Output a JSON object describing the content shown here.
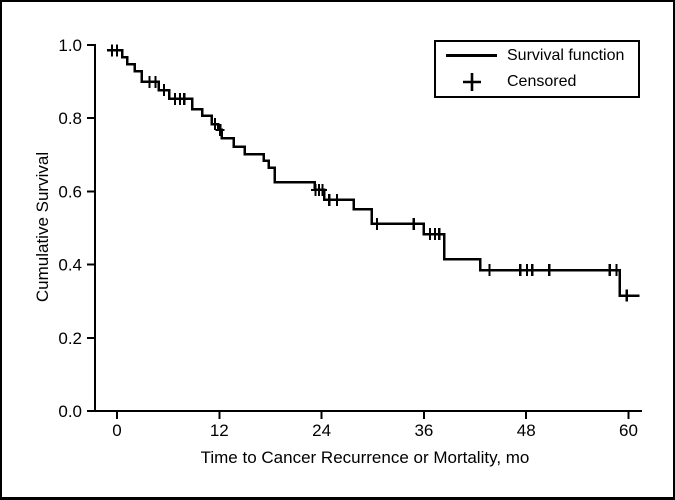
{
  "figure": {
    "background": "#ffffff",
    "frame_color": "#000000"
  },
  "chart_data": {
    "type": "line",
    "subtype": "kaplan-meier-step-function",
    "title": "",
    "xlabel": "Time to Cancer Recurrence or Mortality, mo",
    "ylabel": "Cumulative Survival",
    "x_ticks": [
      0,
      12,
      24,
      36,
      48,
      60
    ],
    "y_tick_labels": [
      "0.0",
      "0.2",
      "0.4",
      "0.6",
      "0.8",
      "1.0"
    ],
    "xlim": [
      -2.6,
      61.6
    ],
    "ylim": [
      0.0,
      1.0
    ],
    "grid": false,
    "line_color": "#000000",
    "legend": {
      "position": "top-right",
      "entries": [
        {
          "label": "Survival function",
          "marker": "line"
        },
        {
          "label": "Censored",
          "marker": "plus"
        }
      ]
    },
    "survival_start": {
      "t": -1.2,
      "s": 0.985
    },
    "survival_steps": [
      {
        "t": 0.6,
        "s": 0.966
      },
      {
        "t": 1.2,
        "s": 0.947
      },
      {
        "t": 2.1,
        "s": 0.928
      },
      {
        "t": 2.9,
        "s": 0.899
      },
      {
        "t": 4.9,
        "s": 0.877
      },
      {
        "t": 6.1,
        "s": 0.853
      },
      {
        "t": 8.8,
        "s": 0.825
      },
      {
        "t": 10.0,
        "s": 0.807
      },
      {
        "t": 11.1,
        "s": 0.784
      },
      {
        "t": 11.9,
        "s": 0.768
      },
      {
        "t": 12.3,
        "s": 0.745
      },
      {
        "t": 13.7,
        "s": 0.722
      },
      {
        "t": 15.0,
        "s": 0.702
      },
      {
        "t": 17.2,
        "s": 0.684
      },
      {
        "t": 17.8,
        "s": 0.665
      },
      {
        "t": 18.5,
        "s": 0.625
      },
      {
        "t": 23.2,
        "s": 0.604
      },
      {
        "t": 24.3,
        "s": 0.577
      },
      {
        "t": 27.8,
        "s": 0.551
      },
      {
        "t": 29.9,
        "s": 0.511
      },
      {
        "t": 36.0,
        "s": 0.483
      },
      {
        "t": 38.4,
        "s": 0.414
      },
      {
        "t": 42.6,
        "s": 0.385
      },
      {
        "t": 59.0,
        "s": 0.315
      }
    ],
    "end_time": 61.3,
    "censored": [
      {
        "t": -0.6,
        "s": 0.985
      },
      {
        "t": 0.0,
        "s": 0.985
      },
      {
        "t": 3.8,
        "s": 0.899
      },
      {
        "t": 4.5,
        "s": 0.899
      },
      {
        "t": 5.5,
        "s": 0.877
      },
      {
        "t": 6.8,
        "s": 0.853
      },
      {
        "t": 7.4,
        "s": 0.853
      },
      {
        "t": 7.9,
        "s": 0.853
      },
      {
        "t": 11.5,
        "s": 0.784
      },
      {
        "t": 12.1,
        "s": 0.768
      },
      {
        "t": 23.3,
        "s": 0.604
      },
      {
        "t": 23.7,
        "s": 0.604
      },
      {
        "t": 24.1,
        "s": 0.604
      },
      {
        "t": 24.9,
        "s": 0.577
      },
      {
        "t": 25.8,
        "s": 0.577
      },
      {
        "t": 30.5,
        "s": 0.511
      },
      {
        "t": 34.8,
        "s": 0.511
      },
      {
        "t": 36.7,
        "s": 0.483
      },
      {
        "t": 37.3,
        "s": 0.483
      },
      {
        "t": 37.8,
        "s": 0.483
      },
      {
        "t": 43.7,
        "s": 0.385
      },
      {
        "t": 47.3,
        "s": 0.385
      },
      {
        "t": 48.1,
        "s": 0.385
      },
      {
        "t": 48.7,
        "s": 0.385
      },
      {
        "t": 50.7,
        "s": 0.385
      },
      {
        "t": 57.8,
        "s": 0.385
      },
      {
        "t": 58.6,
        "s": 0.385
      },
      {
        "t": 59.8,
        "s": 0.315
      }
    ]
  }
}
